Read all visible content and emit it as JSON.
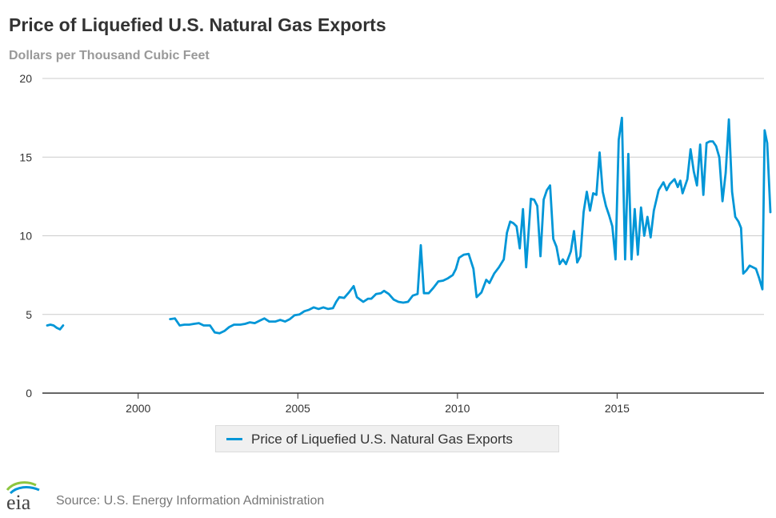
{
  "title": "Price of Liquefied U.S. Natural Gas Exports",
  "subtitle": "Dollars per Thousand Cubic Feet",
  "source": "Source: U.S. Energy Information Administration",
  "logo_text": "eia",
  "colors": {
    "series": "#0096d7",
    "grid": "#cccccc",
    "axis": "#333333"
  },
  "chart_data": {
    "type": "line",
    "title": "Price of Liquefied U.S. Natural Gas Exports",
    "ylabel": "Dollars per Thousand Cubic Feet",
    "xlim": [
      1997.0,
      2019.6
    ],
    "ylim": [
      0,
      20
    ],
    "x_ticks": [
      2000,
      2005,
      2010,
      2015
    ],
    "x_tick_labels": [
      "2000",
      "2005",
      "2010",
      "2015"
    ],
    "y_ticks": [
      0,
      5,
      10,
      15,
      20
    ],
    "y_tick_labels": [
      "0",
      "5",
      "10",
      "15",
      "20"
    ],
    "grid": "horizontal",
    "legend": "bottom-center",
    "series": [
      {
        "name": "Price of Liquefied U.S. Natural Gas Exports",
        "segments": [
          [
            [
              1997.15,
              4.3
            ],
            [
              1997.25,
              4.35
            ],
            [
              1997.35,
              4.3
            ],
            [
              1997.45,
              4.15
            ],
            [
              1997.55,
              4.05
            ],
            [
              1997.65,
              4.3
            ]
          ],
          [
            [
              2001.0,
              4.7
            ],
            [
              2001.15,
              4.75
            ],
            [
              2001.3,
              4.3
            ],
            [
              2001.45,
              4.35
            ],
            [
              2001.6,
              4.35
            ],
            [
              2001.75,
              4.4
            ],
            [
              2001.9,
              4.45
            ],
            [
              2002.05,
              4.3
            ],
            [
              2002.25,
              4.3
            ],
            [
              2002.4,
              3.85
            ],
            [
              2002.55,
              3.8
            ],
            [
              2002.7,
              3.95
            ],
            [
              2002.85,
              4.2
            ],
            [
              2003.0,
              4.35
            ],
            [
              2003.2,
              4.35
            ],
            [
              2003.35,
              4.4
            ],
            [
              2003.5,
              4.5
            ],
            [
              2003.65,
              4.45
            ],
            [
              2003.8,
              4.6
            ],
            [
              2003.95,
              4.75
            ],
            [
              2004.1,
              4.55
            ],
            [
              2004.3,
              4.55
            ],
            [
              2004.45,
              4.65
            ],
            [
              2004.6,
              4.55
            ],
            [
              2004.75,
              4.7
            ],
            [
              2004.9,
              4.95
            ],
            [
              2005.05,
              5.0
            ],
            [
              2005.2,
              5.2
            ],
            [
              2005.35,
              5.3
            ],
            [
              2005.5,
              5.45
            ],
            [
              2005.65,
              5.35
            ],
            [
              2005.8,
              5.45
            ],
            [
              2005.95,
              5.35
            ],
            [
              2006.1,
              5.4
            ],
            [
              2006.2,
              5.8
            ],
            [
              2006.3,
              6.1
            ],
            [
              2006.45,
              6.05
            ],
            [
              2006.6,
              6.4
            ],
            [
              2006.75,
              6.8
            ],
            [
              2006.85,
              6.1
            ],
            [
              2006.95,
              5.95
            ],
            [
              2007.05,
              5.8
            ],
            [
              2007.2,
              6.0
            ],
            [
              2007.3,
              6.0
            ],
            [
              2007.45,
              6.3
            ],
            [
              2007.6,
              6.35
            ],
            [
              2007.7,
              6.5
            ],
            [
              2007.85,
              6.3
            ],
            [
              2008.0,
              5.95
            ],
            [
              2008.15,
              5.8
            ],
            [
              2008.3,
              5.75
            ],
            [
              2008.45,
              5.8
            ],
            [
              2008.6,
              6.2
            ],
            [
              2008.75,
              6.3
            ],
            [
              2008.85,
              9.4
            ],
            [
              2008.95,
              6.35
            ],
            [
              2009.1,
              6.35
            ],
            [
              2009.25,
              6.7
            ],
            [
              2009.4,
              7.1
            ],
            [
              2009.55,
              7.15
            ],
            [
              2009.7,
              7.3
            ],
            [
              2009.85,
              7.5
            ],
            [
              2009.95,
              7.9
            ],
            [
              2010.05,
              8.6
            ],
            [
              2010.2,
              8.8
            ],
            [
              2010.35,
              8.85
            ],
            [
              2010.5,
              7.9
            ],
            [
              2010.6,
              6.1
            ],
            [
              2010.75,
              6.4
            ],
            [
              2010.9,
              7.2
            ],
            [
              2011.0,
              7.0
            ],
            [
              2011.15,
              7.6
            ],
            [
              2011.3,
              8.0
            ],
            [
              2011.45,
              8.5
            ],
            [
              2011.55,
              10.2
            ],
            [
              2011.65,
              10.9
            ],
            [
              2011.75,
              10.8
            ],
            [
              2011.85,
              10.6
            ],
            [
              2011.95,
              9.2
            ],
            [
              2012.05,
              11.7
            ],
            [
              2012.15,
              8.0
            ],
            [
              2012.3,
              12.35
            ],
            [
              2012.4,
              12.3
            ],
            [
              2012.5,
              11.9
            ],
            [
              2012.6,
              8.7
            ],
            [
              2012.7,
              12.3
            ],
            [
              2012.8,
              12.9
            ],
            [
              2012.9,
              13.2
            ],
            [
              2013.0,
              9.8
            ],
            [
              2013.1,
              9.3
            ],
            [
              2013.2,
              8.2
            ],
            [
              2013.3,
              8.5
            ],
            [
              2013.4,
              8.2
            ],
            [
              2013.55,
              9.0
            ],
            [
              2013.65,
              10.3
            ],
            [
              2013.75,
              8.3
            ],
            [
              2013.85,
              8.7
            ],
            [
              2013.95,
              11.5
            ],
            [
              2014.05,
              12.8
            ],
            [
              2014.15,
              11.6
            ],
            [
              2014.25,
              12.7
            ],
            [
              2014.35,
              12.6
            ],
            [
              2014.45,
              15.3
            ],
            [
              2014.55,
              12.8
            ],
            [
              2014.65,
              11.9
            ],
            [
              2014.75,
              11.3
            ],
            [
              2014.85,
              10.6
            ],
            [
              2014.95,
              8.5
            ],
            [
              2015.05,
              16.1
            ],
            [
              2015.15,
              17.5
            ],
            [
              2015.25,
              8.5
            ],
            [
              2015.35,
              15.2
            ],
            [
              2015.45,
              8.5
            ],
            [
              2015.55,
              11.7
            ],
            [
              2015.65,
              8.8
            ],
            [
              2015.75,
              11.8
            ],
            [
              2015.85,
              10.0
            ],
            [
              2015.95,
              11.2
            ],
            [
              2016.05,
              9.9
            ],
            [
              2016.15,
              11.6
            ],
            [
              2016.3,
              12.9
            ],
            [
              2016.45,
              13.4
            ],
            [
              2016.55,
              12.9
            ],
            [
              2016.65,
              13.3
            ],
            [
              2016.8,
              13.6
            ],
            [
              2016.9,
              13.1
            ],
            [
              2016.98,
              13.5
            ],
            [
              2017.05,
              12.7
            ],
            [
              2017.2,
              13.6
            ],
            [
              2017.3,
              15.5
            ],
            [
              2017.4,
              14.1
            ],
            [
              2017.5,
              13.2
            ],
            [
              2017.6,
              15.8
            ],
            [
              2017.7,
              12.6
            ],
            [
              2017.8,
              15.9
            ],
            [
              2017.9,
              16.0
            ],
            [
              2018.0,
              16.0
            ],
            [
              2018.1,
              15.7
            ],
            [
              2018.2,
              15.0
            ],
            [
              2018.3,
              12.2
            ],
            [
              2018.4,
              14.0
            ],
            [
              2018.5,
              17.4
            ],
            [
              2018.6,
              12.8
            ],
            [
              2018.7,
              11.2
            ],
            [
              2018.8,
              10.9
            ],
            [
              2018.88,
              10.5
            ],
            [
              2018.95,
              7.6
            ],
            [
              2019.05,
              7.8
            ],
            [
              2019.15,
              8.1
            ],
            [
              2019.25,
              8.0
            ],
            [
              2019.35,
              7.9
            ],
            [
              2019.45,
              7.3
            ],
            [
              2019.55,
              6.6
            ],
            [
              2019.62,
              16.7
            ],
            [
              2019.7,
              15.9
            ],
            [
              2019.8,
              11.5
            ]
          ]
        ]
      }
    ]
  }
}
